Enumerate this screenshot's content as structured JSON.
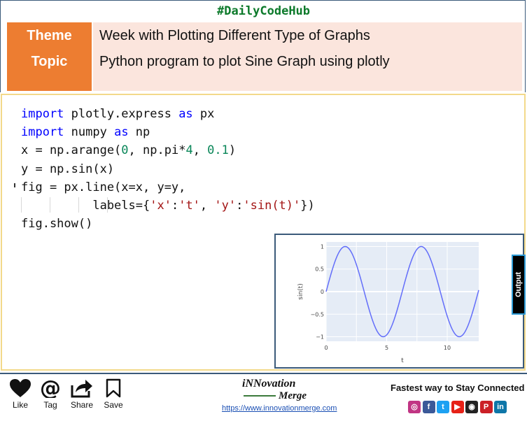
{
  "header": {
    "hashtag": "#DailyCodeHub",
    "theme_label": "Theme",
    "theme_value": "Week with Plotting Different Type of Graphs",
    "topic_label": "Topic",
    "topic_value": "Python program to plot Sine Graph using plotly"
  },
  "code": {
    "lines": [
      [
        {
          "t": "import",
          "c": "kw"
        },
        {
          "t": " plotly.express "
        },
        {
          "t": "as",
          "c": "kw"
        },
        {
          "t": " px"
        }
      ],
      [
        {
          "t": "import",
          "c": "kw"
        },
        {
          "t": " numpy "
        },
        {
          "t": "as",
          "c": "kw"
        },
        {
          "t": " np"
        }
      ],
      [
        {
          "t": "x = np.arange("
        },
        {
          "t": "0",
          "c": "num"
        },
        {
          "t": ", np.pi*"
        },
        {
          "t": "4",
          "c": "num"
        },
        {
          "t": ", "
        },
        {
          "t": "0.1",
          "c": "num"
        },
        {
          "t": ")"
        }
      ],
      [
        {
          "t": "y = np.sin(x)"
        }
      ],
      [
        {
          "t": "fig = px.line(x=x, y=y,"
        }
      ],
      [
        {
          "t": "          labels={"
        },
        {
          "t": "'x'",
          "c": "str"
        },
        {
          "t": ":"
        },
        {
          "t": "'t'",
          "c": "str"
        },
        {
          "t": ", "
        },
        {
          "t": "'y'",
          "c": "str"
        },
        {
          "t": ":"
        },
        {
          "t": "'sin(t)'",
          "c": "str"
        },
        {
          "t": "})"
        }
      ],
      [
        {
          "t": "fig.show()"
        }
      ]
    ]
  },
  "output_tab_label": "Output",
  "chart_data": {
    "type": "line",
    "function": "y = sin(t)",
    "x_start": 0,
    "x_end": 12.566,
    "x_step": 0.1,
    "xlabel": "t",
    "ylabel": "sin(t)",
    "xlim": [
      0,
      12.6
    ],
    "ylim": [
      -1.1,
      1.1
    ],
    "xticks": [
      0,
      5,
      10
    ],
    "yticks": [
      1,
      0.5,
      0,
      -0.5,
      -1
    ],
    "ytick_labels": [
      "1",
      "0.5",
      "0",
      "−0.5",
      "−1"
    ],
    "line_color": "#636efa",
    "plot_bg": "#e5ecf6",
    "grid": true
  },
  "footer": {
    "actions": [
      {
        "label": "Like",
        "icon": "heart-icon"
      },
      {
        "label": "Tag",
        "icon": "at-icon"
      },
      {
        "label": "Share",
        "icon": "share-icon"
      },
      {
        "label": "Save",
        "icon": "bookmark-icon"
      }
    ],
    "logo_line1": "iNNovation",
    "logo_line2": "Merge",
    "url": "https://www.innovationmerge.com",
    "tagline": "Fastest way to Stay Connected",
    "socials": [
      {
        "name": "instagram-icon",
        "color": "#c13584",
        "glyph": "◎"
      },
      {
        "name": "facebook-icon",
        "color": "#3b5998",
        "glyph": "f"
      },
      {
        "name": "twitter-icon",
        "color": "#1da1f2",
        "glyph": "t"
      },
      {
        "name": "youtube-icon",
        "color": "#e62117",
        "glyph": "▶"
      },
      {
        "name": "github-icon",
        "color": "#222222",
        "glyph": "◉"
      },
      {
        "name": "pinterest-icon",
        "color": "#cb2027",
        "glyph": "P"
      },
      {
        "name": "linkedin-icon",
        "color": "#0e76a8",
        "glyph": "in"
      }
    ]
  }
}
